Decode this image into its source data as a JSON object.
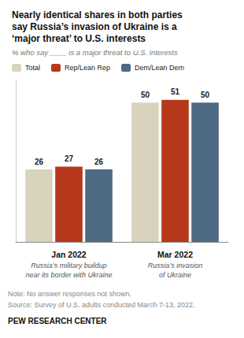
{
  "chart_data": {
    "type": "bar",
    "title": "Nearly identical shares in both parties\nsay Russia’s invasion of Ukraine is a\n‘major threat’ to U.S. interests",
    "subtitle": "% who say ____ is a major threat to U.S. interests",
    "categories": [
      "Jan 2022",
      "Mar 2022"
    ],
    "series": [
      {
        "name": "Total",
        "color": "#d9d3be",
        "values": [
          26,
          50
        ]
      },
      {
        "name": "Rep/Lean Rep",
        "color": "#b5391a",
        "values": [
          27,
          51
        ]
      },
      {
        "name": "Dem/Lean Dem",
        "color": "#4d6a82",
        "values": [
          26,
          50
        ]
      }
    ],
    "ylim": [
      0,
      58
    ],
    "grid": false,
    "legend": "top",
    "data_labels": true,
    "tick_labels": "x",
    "annotations": [
      {
        "text": "Russia’s military buildup\nnear its border with Ukraine",
        "x": "Jan 2022"
      },
      {
        "text": "Russia’s invasion\nof Ukraine",
        "x": "Mar 2022"
      },
      {
        "text": "Note: No answer responses not shown."
      },
      {
        "text": "Source: Survey of U.S. adults conducted March 7-13, 2022."
      },
      {
        "text": "PEW RESEARCH CENTER"
      }
    ]
  }
}
